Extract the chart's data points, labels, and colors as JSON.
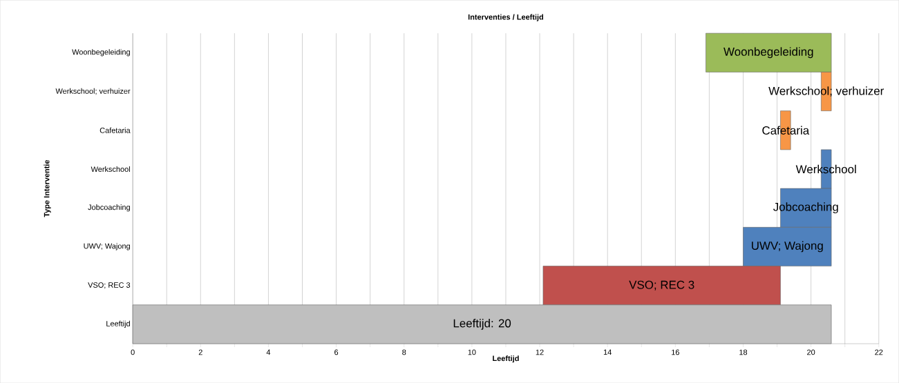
{
  "chart_data": {
    "type": "bar",
    "orientation": "horizontal",
    "title": "Interventies / Leeftijd",
    "xlabel": "Leeftijd",
    "ylabel": "Type Interventie",
    "categories": [
      "Woonbegeleiding",
      "Werkschool; verhuizer",
      "Cafetaria",
      "Werkschool",
      "Jobcoaching",
      "UWV; Wajong",
      "VSO; REC 3",
      "Leeftijd"
    ],
    "base": [
      16.9,
      20.3,
      19.1,
      20.3,
      19.1,
      18.0,
      12.1,
      0
    ],
    "values": [
      3.7,
      0.3,
      0.3,
      0.3,
      1.5,
      2.6,
      7.0,
      20.6
    ],
    "colors": [
      "#9bbb59",
      "#f79646",
      "#f79646",
      "#4f81bd",
      "#4f81bd",
      "#4f81bd",
      "#c0504d",
      "#bfbfbf"
    ],
    "value_labels": [
      "Woonbegeleiding",
      "Werkschool; verhuizer",
      "Cafetaria",
      "Werkschool",
      "Jobcoaching",
      "UWV; Wajong",
      "VSO; REC 3",
      null
    ],
    "annotations": [
      {
        "text": "Leeftijd: 20",
        "x": 10.3,
        "y": "Leeftijd"
      }
    ],
    "xlim": [
      0,
      22
    ],
    "xticks": [
      0,
      {
        "value": 1,
        "label": null
      },
      2,
      {
        "value": 3,
        "label": null
      },
      4,
      {
        "value": 5,
        "label": null
      },
      6,
      {
        "value": 7,
        "label": null
      },
      8,
      {
        "value": 9,
        "label": null
      },
      10,
      {
        "value": 11,
        "label": null
      },
      12,
      {
        "value": 13,
        "label": null
      },
      14,
      {
        "value": 15,
        "label": null
      },
      16,
      {
        "value": 17,
        "label": null
      },
      18,
      {
        "value": 19,
        "label": null
      },
      20,
      {
        "value": 21,
        "label": null
      },
      22
    ],
    "grid": "x"
  }
}
